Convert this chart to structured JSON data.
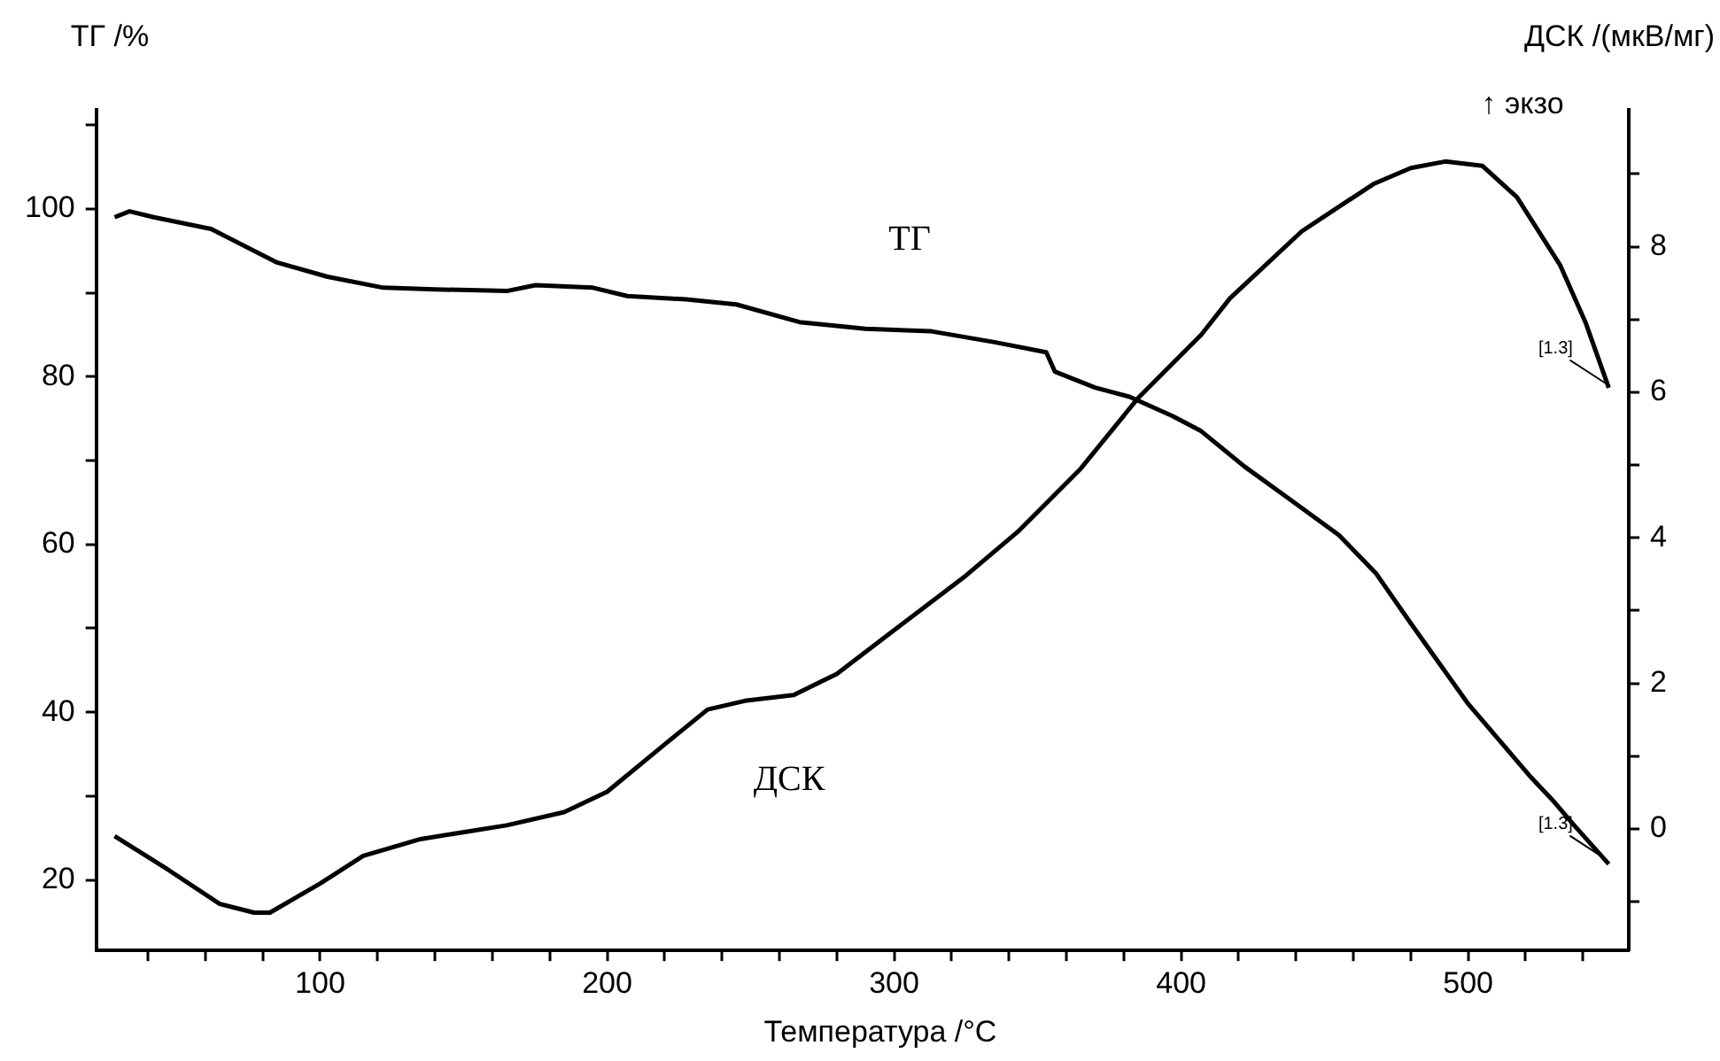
{
  "chart_data": {
    "type": "line",
    "xlabel": "Температура /°C",
    "ylabel": "ТГ /%",
    "y2label": "ДСК /(мкВ/мг)",
    "xlim": [
      22,
      556
    ],
    "ylim": [
      11.6,
      111.8
    ],
    "y2lim": [
      -1.67,
      9.88
    ],
    "xticks": [
      {
        "value": 40,
        "label": null
      },
      {
        "value": 60,
        "label": null
      },
      {
        "value": 80,
        "label": null
      },
      100,
      {
        "value": 120,
        "label": null
      },
      {
        "value": 140,
        "label": null
      },
      {
        "value": 160,
        "label": null
      },
      {
        "value": 180,
        "label": null
      },
      200,
      {
        "value": 220,
        "label": null
      },
      {
        "value": 240,
        "label": null
      },
      {
        "value": 260,
        "label": null
      },
      {
        "value": 280,
        "label": null
      },
      300,
      {
        "value": 320,
        "label": null
      },
      {
        "value": 340,
        "label": null
      },
      {
        "value": 360,
        "label": null
      },
      {
        "value": 380,
        "label": null
      },
      400,
      {
        "value": 420,
        "label": null
      },
      {
        "value": 440,
        "label": null
      },
      {
        "value": 460,
        "label": null
      },
      {
        "value": 480,
        "label": null
      },
      500,
      {
        "value": 520,
        "label": null
      },
      {
        "value": 540,
        "label": null
      }
    ],
    "yticks": [
      20,
      {
        "value": 30,
        "label": null
      },
      40,
      {
        "value": 50,
        "label": null
      },
      60,
      {
        "value": 70,
        "label": null
      },
      80,
      {
        "value": 90,
        "label": null
      },
      100,
      {
        "value": 110,
        "label": null
      }
    ],
    "y2ticks": [
      {
        "value": -1,
        "label": null
      },
      0,
      {
        "value": 1,
        "label": null
      },
      2,
      {
        "value": 3,
        "label": null
      },
      4,
      {
        "value": 5,
        "label": null
      },
      6,
      {
        "value": 7,
        "label": null
      },
      8,
      {
        "value": 9,
        "label": null
      }
    ],
    "grid": false,
    "legend": false,
    "marker": "none",
    "line_style": "solid",
    "series": [
      {
        "name": "ТГ",
        "color": "#000000",
        "x": [
          28.4,
          33.6,
          42,
          62,
          85,
          102.6,
          122,
          140,
          165,
          175,
          195,
          207,
          227.5,
          245,
          267,
          290,
          313,
          335,
          353,
          356,
          370,
          382,
          397,
          407,
          422,
          437,
          455,
          468,
          480,
          490,
          500,
          511,
          522,
          530,
          537,
          543,
          549
        ],
        "values": [
          99.0,
          99.7,
          99.0,
          97.6,
          93.6,
          91.9,
          90.6,
          90.4,
          90.2,
          90.9,
          90.6,
          89.6,
          89.2,
          88.6,
          86.5,
          85.7,
          85.4,
          84.1,
          82.9,
          80.6,
          78.7,
          77.6,
          75.3,
          73.5,
          69.3,
          65.6,
          61.1,
          56.5,
          50.6,
          45.8,
          41.0,
          36.6,
          32.2,
          29.3,
          26.5,
          24.2,
          21.9
        ]
      },
      {
        "name": "ДСК",
        "color": "#000000",
        "axis": "y2",
        "x": [
          28.4,
          47,
          65,
          77,
          82.5,
          100,
          115,
          135,
          165,
          185,
          200,
          220,
          235,
          248,
          265,
          280,
          300,
          325,
          343,
          365,
          385,
          407,
          417,
          442,
          467,
          480,
          492,
          505,
          517,
          532,
          541,
          549
        ],
        "values": [
          -0.1,
          -0.56,
          -1.03,
          -1.15,
          -1.15,
          -0.75,
          -0.37,
          -0.14,
          0.05,
          0.23,
          0.51,
          1.16,
          1.64,
          1.76,
          1.84,
          2.13,
          2.73,
          3.48,
          4.08,
          4.95,
          5.92,
          6.79,
          7.29,
          8.21,
          8.86,
          9.08,
          9.17,
          9.11,
          8.68,
          7.75,
          6.95,
          6.06
        ]
      }
    ],
    "annotations": [
      "↑ экзо",
      {
        "text": "[1.3]",
        "x": 549,
        "y": 78.6
      },
      {
        "text": "[1.3]",
        "x": 549,
        "y": 21.9
      }
    ]
  }
}
